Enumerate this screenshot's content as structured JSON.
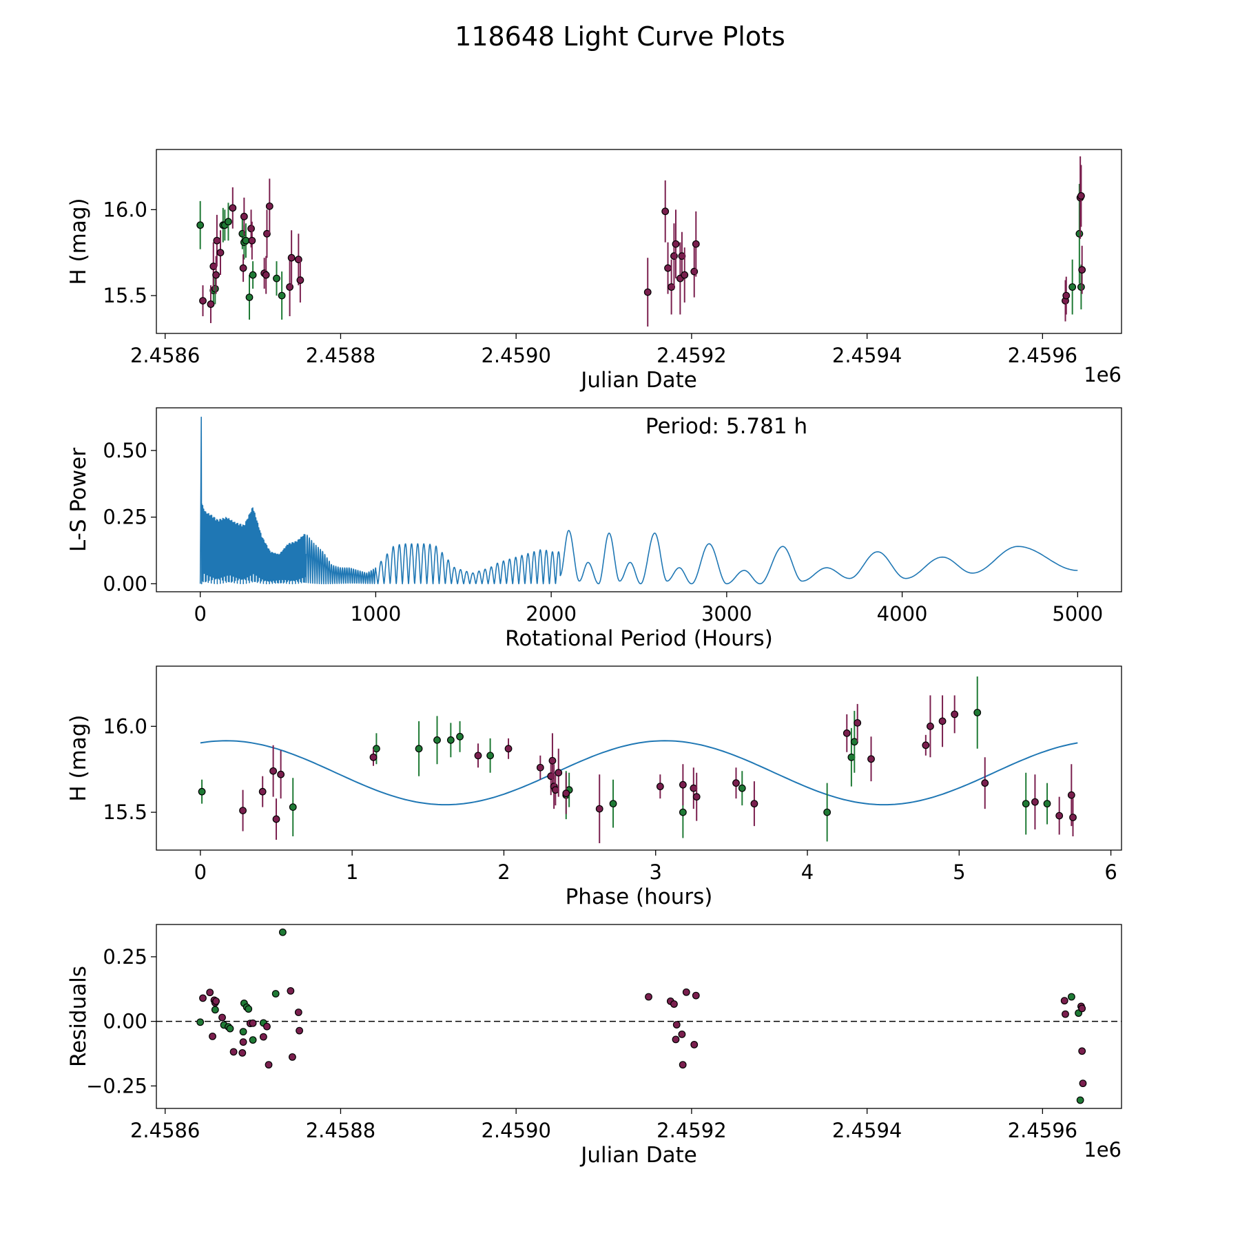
{
  "figure": {
    "title": "118648 Light Curve Plots"
  },
  "colors": {
    "green": "#1f7a35",
    "magenta": "#7a1f4e",
    "line": "#1f77b4",
    "frame": "#000000"
  },
  "chart_data": [
    {
      "type": "scatter",
      "id": "lc",
      "xlabel": "Julian Date",
      "ylabel": "H (mag)",
      "x_offset_label": "1e6",
      "xlim": [
        2.45859,
        2.45969
      ],
      "ylim": [
        15.28,
        16.35
      ],
      "xticks": [
        2.4586,
        2.4588,
        2.459,
        2.4592,
        2.4594,
        2.4596
      ],
      "xtick_labels": [
        "2.4586",
        "2.4588",
        "2.4590",
        "2.4592",
        "2.4594",
        "2.4596"
      ],
      "yticks": [
        15.5,
        16.0
      ],
      "ytick_labels": [
        "15.5",
        "16.0"
      ],
      "series": [
        {
          "name": "green",
          "color_key": "green",
          "x": [
            2.45864,
            2.458655,
            2.458657,
            2.458666,
            2.458668,
            2.458672,
            2.458688,
            2.45869,
            2.458692,
            2.458696,
            2.4587,
            2.458727,
            2.458733,
            2.459634,
            2.459642,
            2.459644
          ],
          "y": [
            15.91,
            15.53,
            15.54,
            15.91,
            15.91,
            15.93,
            15.86,
            15.81,
            15.82,
            15.49,
            15.62,
            15.6,
            15.5,
            15.55,
            15.86,
            15.55
          ],
          "err": [
            0.14,
            0.09,
            0.09,
            0.1,
            0.09,
            0.11,
            0.09,
            0.1,
            0.1,
            0.13,
            0.08,
            0.1,
            0.14,
            0.16,
            0.29,
            0.13
          ]
        },
        {
          "name": "magenta",
          "color_key": "magenta",
          "x": [
            2.458643,
            2.458652,
            2.458655,
            2.458658,
            2.458659,
            2.458663,
            2.458677,
            2.458689,
            2.45869,
            2.458698,
            2.458699,
            2.458713,
            2.458715,
            2.458716,
            2.458719,
            2.458742,
            2.458744,
            2.458752,
            2.458754,
            2.45915,
            2.45917,
            2.459173,
            2.459177,
            2.45918,
            2.459182,
            2.459187,
            2.459189,
            2.459192,
            2.459203,
            2.459205,
            2.459626,
            2.459627,
            2.459643,
            2.459644,
            2.459645
          ],
          "y": [
            15.47,
            15.45,
            15.67,
            15.62,
            15.82,
            15.75,
            16.01,
            15.66,
            15.96,
            15.89,
            15.82,
            15.63,
            15.62,
            15.86,
            16.02,
            15.55,
            15.72,
            15.71,
            15.59,
            15.52,
            15.99,
            15.66,
            15.55,
            15.73,
            15.8,
            15.6,
            15.73,
            15.62,
            15.64,
            15.8,
            15.47,
            15.5,
            16.07,
            16.08,
            15.65
          ],
          "err": [
            0.09,
            0.11,
            0.14,
            0.11,
            0.15,
            0.13,
            0.12,
            0.08,
            0.11,
            0.11,
            0.11,
            0.09,
            0.11,
            0.14,
            0.16,
            0.17,
            0.16,
            0.15,
            0.13,
            0.2,
            0.18,
            0.15,
            0.16,
            0.19,
            0.2,
            0.21,
            0.14,
            0.16,
            0.15,
            0.19,
            0.12,
            0.11,
            0.24,
            0.18,
            0.14
          ]
        }
      ]
    },
    {
      "type": "line",
      "id": "ls",
      "xlabel": "Rotational Period (Hours)",
      "ylabel": "L-S Power",
      "annotation": "Period: 5.781 h",
      "xlim": [
        -250,
        5250
      ],
      "ylim": [
        -0.03,
        0.66
      ],
      "xticks": [
        0,
        1000,
        2000,
        3000,
        4000,
        5000
      ],
      "xtick_labels": [
        "0",
        "1000",
        "2000",
        "3000",
        "4000",
        "5000"
      ],
      "yticks": [
        0.0,
        0.25,
        0.5
      ],
      "ytick_labels": [
        "0.00",
        "0.25",
        "0.50"
      ],
      "max_period": 5000,
      "peak": {
        "x": 5.781,
        "y": 0.625
      },
      "envelope": {
        "x": [
          0,
          10,
          30,
          60,
          100,
          150,
          200,
          250,
          300,
          350,
          400,
          450,
          500,
          550,
          600,
          650,
          700,
          750,
          800,
          850,
          900,
          950,
          1000,
          1050,
          1100,
          1150,
          1200,
          1250,
          1300,
          1350,
          1400,
          1450,
          1500,
          1550,
          1600,
          1650,
          1700,
          1750,
          1800,
          1850,
          1900,
          1950,
          2000
        ],
        "y": [
          0.36,
          0.3,
          0.27,
          0.26,
          0.24,
          0.25,
          0.23,
          0.22,
          0.29,
          0.18,
          0.12,
          0.11,
          0.15,
          0.16,
          0.19,
          0.15,
          0.12,
          0.07,
          0.06,
          0.06,
          0.05,
          0.04,
          0.06,
          0.1,
          0.14,
          0.15,
          0.15,
          0.15,
          0.15,
          0.14,
          0.1,
          0.06,
          0.05,
          0.04,
          0.05,
          0.06,
          0.08,
          0.09,
          0.1,
          0.11,
          0.12,
          0.13,
          0.12
        ]
      },
      "waves": {
        "peaks_x": [
          2100,
          2210,
          2330,
          2450,
          2590,
          2730,
          2900,
          3100,
          3320,
          3570,
          3860,
          4230,
          4660
        ],
        "peaks_y": [
          0.2,
          0.08,
          0.19,
          0.08,
          0.19,
          0.06,
          0.15,
          0.05,
          0.14,
          0.06,
          0.12,
          0.1,
          0.14
        ],
        "troughs_x": [
          2160,
          2270,
          2390,
          2510,
          2660,
          2800,
          3000,
          3190,
          3430,
          3700,
          4020,
          4400,
          5000
        ],
        "troughs_y": [
          0.01,
          0.0,
          0.01,
          0.0,
          0.01,
          0.0,
          0.0,
          0.0,
          0.01,
          0.02,
          0.02,
          0.04,
          0.05
        ]
      }
    },
    {
      "type": "scatter",
      "id": "phase",
      "xlabel": "Phase (hours)",
      "ylabel": "H (mag)",
      "xlim": [
        -0.29,
        6.07
      ],
      "ylim": [
        15.28,
        16.35
      ],
      "xticks": [
        0,
        1,
        2,
        3,
        4,
        5,
        6
      ],
      "xtick_labels": [
        "0",
        "1",
        "2",
        "3",
        "4",
        "5",
        "6"
      ],
      "yticks": [
        15.5,
        16.0
      ],
      "ytick_labels": [
        "15.5",
        "16.0"
      ],
      "model": {
        "period_h": 5.781,
        "mean": 15.73,
        "amp1": 0.0,
        "amp2": 0.186,
        "phase_offset_h": 0.17
      },
      "series": [
        {
          "name": "green",
          "color_key": "green",
          "x": [
            0.01,
            0.61,
            1.16,
            1.44,
            1.56,
            1.65,
            1.71,
            1.91,
            2.41,
            2.43,
            2.72,
            3.18,
            3.57,
            4.13,
            4.29,
            4.31,
            5.12,
            5.44,
            5.58
          ],
          "y": [
            15.62,
            15.53,
            15.87,
            15.87,
            15.92,
            15.92,
            15.94,
            15.83,
            15.6,
            15.63,
            15.55,
            15.5,
            15.64,
            15.5,
            15.82,
            15.91,
            16.08,
            15.55,
            15.55
          ],
          "err": [
            0.07,
            0.17,
            0.09,
            0.16,
            0.14,
            0.1,
            0.09,
            0.1,
            0.14,
            0.1,
            0.14,
            0.15,
            0.1,
            0.17,
            0.17,
            0.18,
            0.21,
            0.18,
            0.12
          ]
        },
        {
          "name": "magenta",
          "color_key": "magenta",
          "x": [
            0.28,
            0.41,
            0.48,
            0.5,
            0.53,
            1.14,
            1.83,
            2.03,
            2.24,
            2.31,
            2.32,
            2.33,
            2.34,
            2.36,
            2.41,
            2.63,
            3.03,
            3.18,
            3.25,
            3.27,
            3.53,
            3.65,
            4.26,
            4.33,
            4.42,
            4.78,
            4.81,
            4.89,
            4.97,
            5.17,
            5.5,
            5.66,
            5.74,
            5.75
          ],
          "y": [
            15.51,
            15.62,
            15.74,
            15.46,
            15.72,
            15.82,
            15.83,
            15.87,
            15.76,
            15.71,
            15.8,
            15.65,
            15.63,
            15.73,
            15.61,
            15.52,
            15.65,
            15.66,
            15.64,
            15.59,
            15.67,
            15.55,
            15.96,
            16.02,
            15.81,
            15.89,
            16.0,
            16.03,
            16.07,
            15.67,
            15.56,
            15.48,
            15.6,
            15.47
          ],
          "err": [
            0.12,
            0.09,
            0.15,
            0.12,
            0.14,
            0.05,
            0.07,
            0.06,
            0.07,
            0.11,
            0.16,
            0.13,
            0.09,
            0.14,
            0.12,
            0.2,
            0.07,
            0.12,
            0.12,
            0.14,
            0.09,
            0.13,
            0.11,
            0.11,
            0.13,
            0.06,
            0.18,
            0.15,
            0.11,
            0.15,
            0.16,
            0.11,
            0.18,
            0.11
          ]
        }
      ]
    },
    {
      "type": "scatter",
      "id": "res",
      "xlabel": "Julian Date",
      "ylabel": "Residuals",
      "x_offset_label": "1e6",
      "xlim": [
        2.45859,
        2.45969
      ],
      "ylim": [
        -0.337,
        0.375
      ],
      "xticks": [
        2.4586,
        2.4588,
        2.459,
        2.4592,
        2.4594,
        2.4596
      ],
      "xtick_labels": [
        "2.4586",
        "2.4588",
        "2.4590",
        "2.4592",
        "2.4594",
        "2.4596"
      ],
      "yticks": [
        -0.25,
        0.0,
        0.25
      ],
      "ytick_labels": [
        "−0.25",
        "0.00",
        "0.25"
      ],
      "zero_line": true,
      "series": [
        {
          "name": "green",
          "color_key": "green",
          "x": [
            2.45864,
            2.458657,
            2.458667,
            2.458672,
            2.458674,
            2.458689,
            2.45869,
            2.458693,
            2.458695,
            2.4587,
            2.458712,
            2.458726,
            2.458734,
            2.459633,
            2.459641,
            2.459643
          ],
          "y": [
            -0.003,
            0.045,
            -0.014,
            -0.021,
            -0.028,
            -0.04,
            0.07,
            0.055,
            0.048,
            -0.072,
            -0.006,
            0.107,
            0.345,
            0.095,
            0.032,
            -0.305
          ],
          "err": [
            0,
            0,
            0,
            0,
            0,
            0,
            0,
            0,
            0,
            0,
            0,
            0,
            0,
            0,
            0,
            0
          ]
        },
        {
          "name": "magenta",
          "color_key": "magenta",
          "x": [
            2.458643,
            2.458651,
            2.458654,
            2.458656,
            2.458657,
            2.458658,
            2.458665,
            2.458678,
            2.458688,
            2.458689,
            2.458697,
            2.4587,
            2.458712,
            2.458716,
            2.458718,
            2.458743,
            2.458745,
            2.458752,
            2.458753,
            2.459151,
            2.459176,
            2.45918,
            2.459182,
            2.459183,
            2.459189,
            2.45919,
            2.459194,
            2.459203,
            2.459205,
            2.459625,
            2.459626,
            2.459644,
            2.459645,
            2.459645,
            2.459646
          ],
          "y": [
            0.09,
            0.112,
            -0.058,
            0.082,
            0.072,
            0.078,
            0.015,
            -0.118,
            -0.122,
            -0.08,
            -0.008,
            -0.007,
            -0.06,
            -0.02,
            -0.168,
            0.118,
            -0.138,
            0.035,
            -0.036,
            0.095,
            0.078,
            0.067,
            -0.07,
            -0.013,
            -0.05,
            -0.168,
            0.113,
            -0.09,
            0.1,
            0.08,
            0.028,
            0.058,
            0.05,
            -0.115,
            -0.24
          ],
          "err": [
            0,
            0,
            0,
            0,
            0,
            0,
            0,
            0,
            0,
            0,
            0,
            0,
            0,
            0,
            0,
            0,
            0,
            0,
            0,
            0,
            0,
            0,
            0,
            0,
            0,
            0,
            0,
            0,
            0,
            0,
            0,
            0,
            0,
            0,
            0
          ]
        }
      ]
    }
  ]
}
